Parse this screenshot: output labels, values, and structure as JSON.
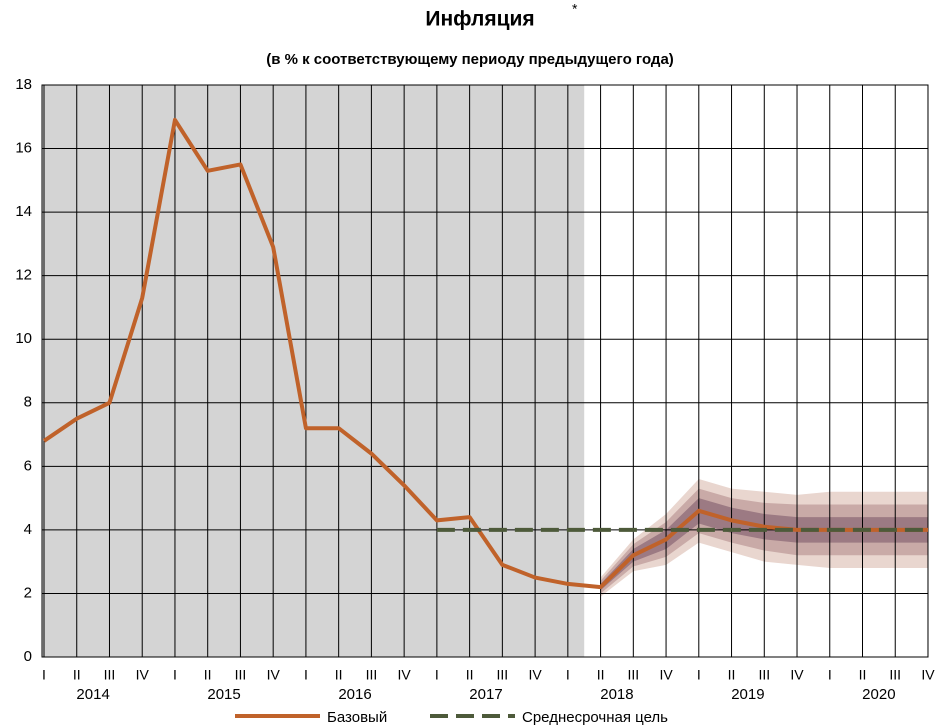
{
  "chart_data": {
    "type": "line",
    "title": "Инфляция",
    "title_note": "*",
    "subtitle": "(в % к соответствующему периоду предыдущего года)",
    "categories": [
      "I",
      "II",
      "III",
      "IV",
      "I",
      "II",
      "III",
      "IV",
      "I",
      "II",
      "III",
      "IV",
      "I",
      "II",
      "III",
      "IV",
      "I",
      "II",
      "III",
      "IV",
      "I",
      "II",
      "III",
      "IV",
      "I",
      "II",
      "III",
      "IV"
    ],
    "years": [
      "2014",
      "2015",
      "2016",
      "2017",
      "2018",
      "2019",
      "2020"
    ],
    "series": [
      {
        "name": "Базовый",
        "color": "#c0622a",
        "values": [
          6.8,
          7.5,
          8.0,
          11.3,
          16.9,
          15.3,
          15.5,
          12.9,
          7.2,
          7.2,
          6.4,
          5.4,
          4.3,
          4.4,
          2.9,
          2.5,
          2.3,
          2.2,
          3.2,
          3.7,
          4.6,
          4.3,
          4.1,
          4.0,
          4.0,
          4.0,
          4.0,
          4.0
        ]
      },
      {
        "name": "Среднесрочная цель",
        "color": "#4d5a3a",
        "dashed": true,
        "values": [
          null,
          null,
          null,
          null,
          null,
          null,
          null,
          null,
          null,
          null,
          null,
          null,
          4.0,
          4.0,
          4.0,
          4.0,
          4.0,
          4.0,
          4.0,
          4.0,
          4.0,
          4.0,
          4.0,
          4.0,
          4.0,
          4.0,
          4.0,
          4.0
        ]
      }
    ],
    "bands": [
      {
        "color": "#e9d6cf",
        "lower": [
          null,
          null,
          null,
          null,
          null,
          null,
          null,
          null,
          null,
          null,
          null,
          null,
          null,
          null,
          null,
          null,
          null,
          1.9,
          2.7,
          2.9,
          3.6,
          3.3,
          3.0,
          2.9,
          2.8,
          2.8,
          2.8,
          2.8
        ],
        "upper": [
          null,
          null,
          null,
          null,
          null,
          null,
          null,
          null,
          null,
          null,
          null,
          null,
          null,
          null,
          null,
          null,
          null,
          2.5,
          3.7,
          4.5,
          5.6,
          5.3,
          5.2,
          5.1,
          5.2,
          5.2,
          5.2,
          5.2
        ]
      },
      {
        "color": "#c9aaa7",
        "lower": [
          null,
          null,
          null,
          null,
          null,
          null,
          null,
          null,
          null,
          null,
          null,
          null,
          null,
          null,
          null,
          null,
          null,
          2.0,
          2.85,
          3.15,
          3.9,
          3.6,
          3.35,
          3.2,
          3.2,
          3.2,
          3.2,
          3.2
        ],
        "upper": [
          null,
          null,
          null,
          null,
          null,
          null,
          null,
          null,
          null,
          null,
          null,
          null,
          null,
          null,
          null,
          null,
          null,
          2.4,
          3.55,
          4.25,
          5.3,
          5.0,
          4.85,
          4.8,
          4.8,
          4.8,
          4.8,
          4.8
        ]
      },
      {
        "color": "#9c7a83",
        "lower": [
          null,
          null,
          null,
          null,
          null,
          null,
          null,
          null,
          null,
          null,
          null,
          null,
          null,
          null,
          null,
          null,
          null,
          2.1,
          3.0,
          3.4,
          4.2,
          3.9,
          3.7,
          3.6,
          3.6,
          3.6,
          3.6,
          3.6
        ],
        "upper": [
          null,
          null,
          null,
          null,
          null,
          null,
          null,
          null,
          null,
          null,
          null,
          null,
          null,
          null,
          null,
          null,
          null,
          2.3,
          3.4,
          4.0,
          5.0,
          4.7,
          4.5,
          4.4,
          4.4,
          4.4,
          4.4,
          4.4
        ]
      }
    ],
    "shaded_region": {
      "x": [
        -0.1,
        16.5
      ],
      "color": "#d4d4d4"
    },
    "ylim": [
      0,
      18
    ],
    "yticks": [
      0,
      2,
      4,
      6,
      8,
      10,
      12,
      14,
      16,
      18
    ],
    "grid": true
  }
}
